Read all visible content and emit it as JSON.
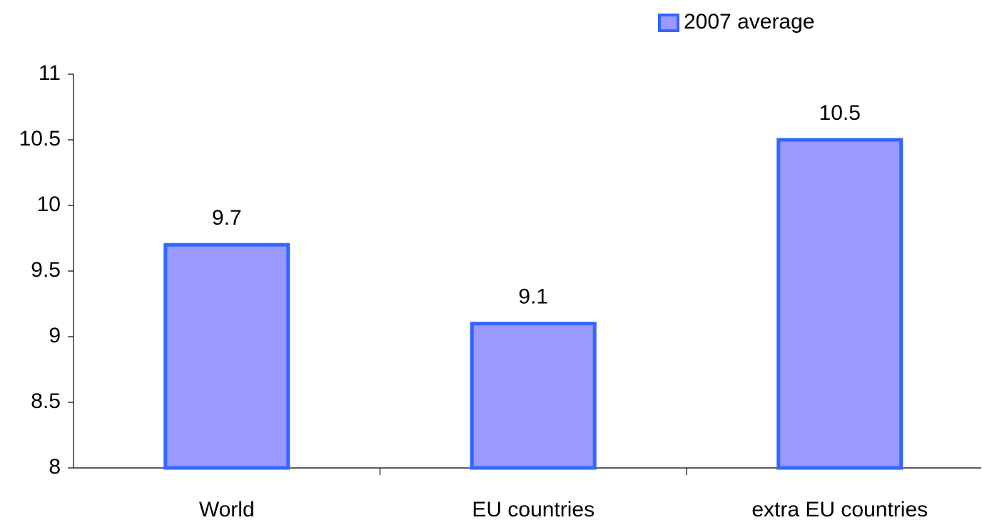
{
  "chart_data": {
    "type": "bar",
    "categories": [
      "World",
      "EU countries",
      "extra EU countries"
    ],
    "series": [
      {
        "name": "2007 average",
        "color": "#9999ff",
        "edge": "#3366ff",
        "values": [
          9.7,
          9.1,
          10.5
        ]
      }
    ],
    "ylim": [
      8,
      11
    ],
    "yticks": [
      8,
      8.5,
      9,
      9.5,
      10,
      10.5,
      11
    ],
    "grid": false,
    "legend": "top-right"
  }
}
